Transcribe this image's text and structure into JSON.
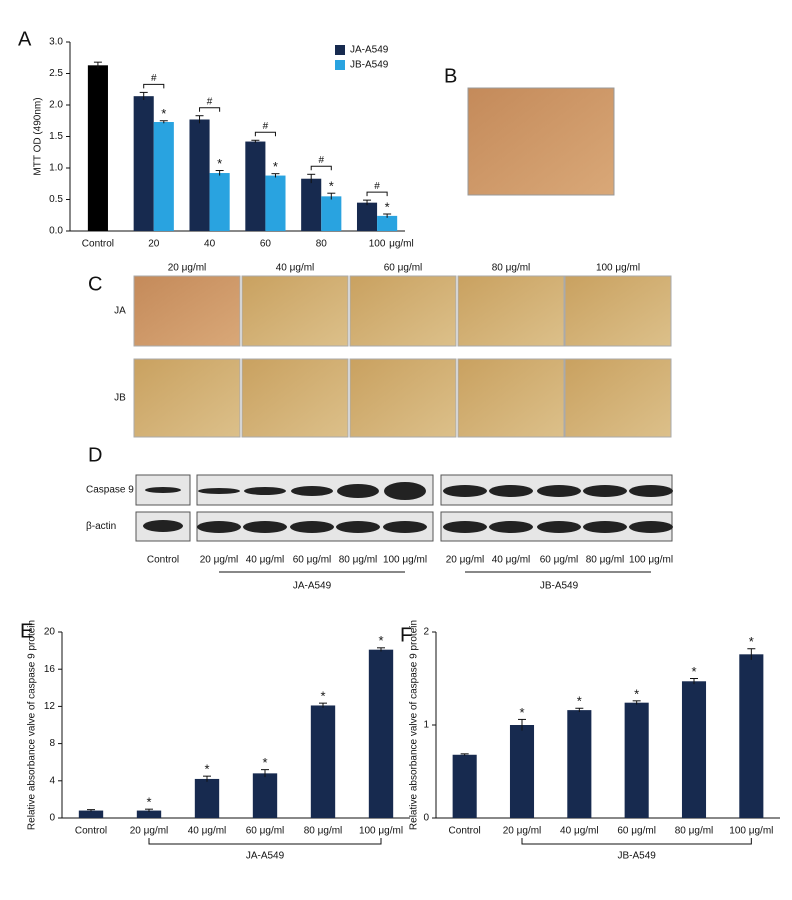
{
  "panel_labels": [
    "A",
    "B",
    "C",
    "D",
    "E",
    "F"
  ],
  "panel_c": {
    "columns": [
      "20 μg/ml",
      "40 μg/ml",
      "60 μg/ml",
      "80 μg/ml",
      "100 μg/ml"
    ],
    "rows": [
      "JA",
      "JB"
    ]
  },
  "panel_d": {
    "proteins": [
      "Caspase 9",
      "β-actin"
    ],
    "control": "Control",
    "lanes": [
      "20 μg/ml",
      "40 μg/ml",
      "60 μg/ml",
      "80 μg/ml",
      "100 μg/ml"
    ],
    "groups": [
      "JA-A549",
      "JB-A549"
    ]
  },
  "chart_data": [
    {
      "type": "bar",
      "y_label": "MTT OD (490nm)",
      "categories": [
        "Control",
        "20",
        "40",
        "60",
        "80",
        "100"
      ],
      "x_unit": "μg/ml",
      "series": [
        {
          "name": "JA-A549",
          "color": "#172a4f",
          "colors": [
            "#000000",
            "#172a4f",
            "#172a4f",
            "#172a4f",
            "#172a4f",
            "#172a4f"
          ],
          "values": [
            2.63,
            2.14,
            1.77,
            1.42,
            0.83,
            0.45
          ],
          "errors": [
            0.05,
            0.06,
            0.06,
            0.02,
            0.07,
            0.04
          ]
        },
        {
          "name": "JB-A549",
          "color": "#29a3e0",
          "values": [
            null,
            1.73,
            0.92,
            0.88,
            0.55,
            0.24
          ],
          "errors": [
            null,
            0.02,
            0.04,
            0.03,
            0.05,
            0.03
          ],
          "stars": [
            false,
            true,
            true,
            true,
            true,
            true
          ]
        }
      ],
      "star_symbol": "*",
      "hash_symbol": "#",
      "hash": [
        false,
        true,
        true,
        true,
        true,
        true
      ],
      "ylim": [
        0,
        3
      ],
      "yticks": [
        {
          "value": 0,
          "label": "0.0"
        },
        {
          "value": 0.5,
          "label": "0.5"
        },
        {
          "value": 1,
          "label": "1.0"
        },
        {
          "value": 1.5,
          "label": "1.5"
        },
        {
          "value": 2,
          "label": "2.0"
        },
        {
          "value": 2.5,
          "label": "2.5"
        },
        {
          "value": 3,
          "label": "3.0"
        }
      ],
      "legend": "top-right"
    },
    {
      "type": "bar",
      "y_label": "Relative absorbance valve of caspase 9 protein",
      "categories": [
        "Control",
        "20 μg/ml",
        "40 μg/ml",
        "60 μg/ml",
        "80 μg/ml",
        "100 μg/ml"
      ],
      "group_label": "JA-A549",
      "series": [
        {
          "name": "JA-A549",
          "color": "#172a4f",
          "values": [
            0.8,
            0.8,
            4.2,
            4.8,
            12.1,
            18.1
          ],
          "errors": [
            0.1,
            0.15,
            0.3,
            0.4,
            0.25,
            0.2
          ],
          "stars": [
            false,
            true,
            true,
            true,
            true,
            true
          ]
        }
      ],
      "star_symbol": "*",
      "ylim": [
        0,
        20
      ],
      "yticks": [
        0,
        4,
        8,
        12,
        16,
        20
      ]
    },
    {
      "type": "bar",
      "y_label": "Relative absorbance valve of caspase 9 protein",
      "categories": [
        "Control",
        "20 μg/ml",
        "40 μg/ml",
        "60 μg/ml",
        "80 μg/ml",
        "100 μg/ml"
      ],
      "group_label": "JB-A549",
      "series": [
        {
          "name": "JB-A549",
          "color": "#172a4f",
          "values": [
            0.68,
            1.0,
            1.16,
            1.24,
            1.47,
            1.76
          ],
          "errors": [
            0.01,
            0.06,
            0.02,
            0.02,
            0.03,
            0.06
          ],
          "stars": [
            false,
            true,
            true,
            true,
            true,
            true
          ]
        }
      ],
      "star_symbol": "*",
      "ylim": [
        0,
        2
      ],
      "yticks": [
        0,
        1,
        2
      ]
    }
  ]
}
